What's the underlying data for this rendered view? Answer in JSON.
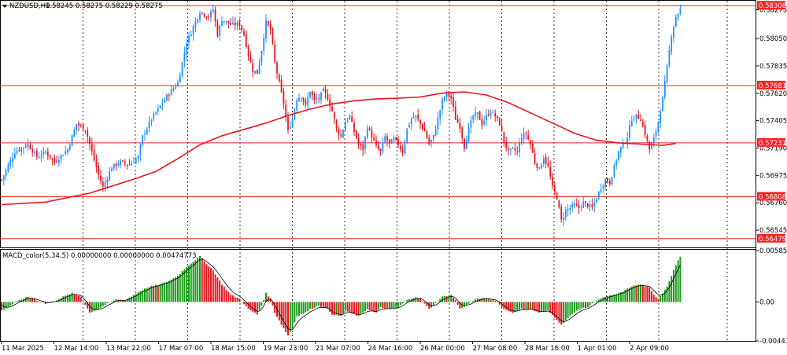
{
  "header": {
    "symbol_label": "NZDUSD,H1",
    "ohlc_values": "0.58245 0.58275 0.58229 0.58275"
  },
  "macd_header": "MACD_color(5,34,5) 0.00000000 0.00000000 0.00474773",
  "colors": {
    "bull_candle": "#1e90ff",
    "bear_candle": "#e8141e",
    "ma_line": "#e8141e",
    "level_line": "#ff2020",
    "grid": "#000000",
    "macd_up": "#1a9c1a",
    "macd_down": "#e8141e",
    "macd_brown": "#8b4513",
    "signal_line": "#000000"
  },
  "chart_data": [
    {
      "type": "candlestick",
      "title": "NZDUSD,H1",
      "price_axis_labels": [
        "0.58275",
        "0.58050",
        "0.57835",
        "0.57620",
        "0.57405",
        "0.57190",
        "0.56975",
        "0.56760",
        "0.56545"
      ],
      "ylim": [
        0.5641,
        0.5834
      ],
      "horizontal_levels": [
        "0.58308",
        "0.57681",
        "0.57231",
        "0.56808",
        "0.56479"
      ],
      "time_labels": [
        "11 Mar 2025",
        "12 Mar 14:00",
        "13 Mar 22:00",
        "17 Mar 07:00",
        "18 Mar 15:00",
        "19 Mar 23:00",
        "21 Mar 07:00",
        "24 Mar 16:00",
        "26 Mar 00:00",
        "27 Mar 08:00",
        "28 Mar 16:00",
        "1 Apr 01:00",
        "2 Apr 09:00"
      ],
      "close_path": [
        [
          0,
          0.5694
        ],
        [
          6,
          0.5716
        ],
        [
          12,
          0.5722
        ],
        [
          16,
          0.5712
        ],
        [
          20,
          0.5716
        ],
        [
          24,
          0.5708
        ],
        [
          30,
          0.5718
        ],
        [
          34,
          0.5738
        ],
        [
          38,
          0.5734
        ],
        [
          40,
          0.5722
        ],
        [
          44,
          0.5698
        ],
        [
          46,
          0.5688
        ],
        [
          50,
          0.5704
        ],
        [
          54,
          0.5708
        ],
        [
          58,
          0.5706
        ],
        [
          62,
          0.5712
        ],
        [
          64,
          0.5728
        ],
        [
          68,
          0.5742
        ],
        [
          72,
          0.5752
        ],
        [
          76,
          0.5762
        ],
        [
          80,
          0.577
        ],
        [
          84,
          0.5802
        ],
        [
          88,
          0.5818
        ],
        [
          90,
          0.5826
        ],
        [
          94,
          0.5822
        ],
        [
          96,
          0.5828
        ],
        [
          98,
          0.5808
        ],
        [
          100,
          0.582
        ],
        [
          104,
          0.5816
        ],
        [
          108,
          0.5816
        ],
        [
          110,
          0.5808
        ],
        [
          112,
          0.5792
        ],
        [
          114,
          0.578
        ],
        [
          116,
          0.5778
        ],
        [
          118,
          0.5796
        ],
        [
          120,
          0.5818
        ],
        [
          122,
          0.5812
        ],
        [
          124,
          0.5786
        ],
        [
          126,
          0.577
        ],
        [
          128,
          0.5754
        ],
        [
          130,
          0.5732
        ],
        [
          132,
          0.5742
        ],
        [
          134,
          0.5758
        ],
        [
          136,
          0.576
        ],
        [
          138,
          0.5752
        ],
        [
          140,
          0.5764
        ],
        [
          142,
          0.5756
        ],
        [
          144,
          0.5758
        ],
        [
          146,
          0.5764
        ],
        [
          148,
          0.5758
        ],
        [
          150,
          0.5748
        ],
        [
          152,
          0.5734
        ],
        [
          154,
          0.5728
        ],
        [
          156,
          0.574
        ],
        [
          158,
          0.5744
        ],
        [
          160,
          0.5732
        ],
        [
          162,
          0.5722
        ],
        [
          164,
          0.5718
        ],
        [
          166,
          0.5736
        ],
        [
          168,
          0.5728
        ],
        [
          170,
          0.572
        ],
        [
          172,
          0.5716
        ],
        [
          174,
          0.5728
        ],
        [
          176,
          0.5722
        ],
        [
          178,
          0.5726
        ],
        [
          180,
          0.5722
        ],
        [
          182,
          0.5716
        ],
        [
          184,
          0.5734
        ],
        [
          186,
          0.5742
        ],
        [
          188,
          0.5744
        ],
        [
          190,
          0.5738
        ],
        [
          192,
          0.5732
        ],
        [
          194,
          0.5722
        ],
        [
          196,
          0.5728
        ],
        [
          198,
          0.5742
        ],
        [
          200,
          0.5756
        ],
        [
          202,
          0.5762
        ],
        [
          204,
          0.5758
        ],
        [
          206,
          0.5742
        ],
        [
          208,
          0.5736
        ],
        [
          210,
          0.572
        ],
        [
          212,
          0.5734
        ],
        [
          214,
          0.5744
        ],
        [
          216,
          0.5746
        ],
        [
          218,
          0.5738
        ],
        [
          220,
          0.5744
        ],
        [
          222,
          0.5748
        ],
        [
          224,
          0.5744
        ],
        [
          226,
          0.5738
        ],
        [
          228,
          0.5724
        ],
        [
          230,
          0.5716
        ],
        [
          232,
          0.5718
        ],
        [
          234,
          0.5716
        ],
        [
          236,
          0.5728
        ],
        [
          238,
          0.573
        ],
        [
          240,
          0.5722
        ],
        [
          242,
          0.5708
        ],
        [
          244,
          0.5702
        ],
        [
          246,
          0.5712
        ],
        [
          248,
          0.5704
        ],
        [
          250,
          0.5688
        ],
        [
          252,
          0.568
        ],
        [
          254,
          0.5662
        ],
        [
          256,
          0.567
        ],
        [
          258,
          0.5672
        ],
        [
          260,
          0.5674
        ],
        [
          262,
          0.5672
        ],
        [
          264,
          0.5676
        ],
        [
          266,
          0.5674
        ],
        [
          268,
          0.5672
        ],
        [
          270,
          0.568
        ],
        [
          272,
          0.5688
        ],
        [
          274,
          0.5694
        ],
        [
          276,
          0.5692
        ],
        [
          278,
          0.5704
        ],
        [
          280,
          0.5716
        ],
        [
          282,
          0.5722
        ],
        [
          284,
          0.5728
        ],
        [
          286,
          0.5742
        ],
        [
          288,
          0.5744
        ],
        [
          290,
          0.5742
        ],
        [
          292,
          0.573
        ],
        [
          294,
          0.5718
        ],
        [
          296,
          0.5726
        ],
        [
          298,
          0.574
        ],
        [
          300,
          0.5758
        ],
        [
          302,
          0.5782
        ],
        [
          304,
          0.5808
        ],
        [
          306,
          0.5822
        ],
        [
          308,
          0.5828
        ]
      ],
      "moving_average": [
        [
          0,
          0.56746
        ],
        [
          20,
          0.56766
        ],
        [
          40,
          0.56836
        ],
        [
          60,
          0.56946
        ],
        [
          70,
          0.57006
        ],
        [
          80,
          0.57106
        ],
        [
          90,
          0.57216
        ],
        [
          100,
          0.57286
        ],
        [
          110,
          0.57336
        ],
        [
          120,
          0.57386
        ],
        [
          130,
          0.57446
        ],
        [
          140,
          0.57496
        ],
        [
          150,
          0.57536
        ],
        [
          160,
          0.57561
        ],
        [
          170,
          0.57576
        ],
        [
          180,
          0.57581
        ],
        [
          190,
          0.57591
        ],
        [
          200,
          0.57621
        ],
        [
          210,
          0.57631
        ],
        [
          220,
          0.57606
        ],
        [
          230,
          0.57546
        ],
        [
          240,
          0.57466
        ],
        [
          250,
          0.57386
        ],
        [
          260,
          0.57306
        ],
        [
          270,
          0.57251
        ],
        [
          280,
          0.57231
        ],
        [
          290,
          0.57221
        ],
        [
          300,
          0.57211
        ],
        [
          306,
          0.57226
        ]
      ]
    },
    {
      "type": "bar",
      "title": "MACD_color(5,34,5)",
      "axis_labels": [
        "0.0058527",
        "0.00",
        "-0.0044174"
      ],
      "ylim": [
        -0.0044174,
        0.0058527
      ],
      "histogram": [
        [
          0,
          -0.001
        ],
        [
          4,
          -0.0004
        ],
        [
          8,
          0.0002
        ],
        [
          12,
          0.0006
        ],
        [
          16,
          0.0002
        ],
        [
          20,
          -0.0002
        ],
        [
          24,
          0.0001
        ],
        [
          28,
          0.0006
        ],
        [
          32,
          0.001
        ],
        [
          36,
          0.0006
        ],
        [
          40,
          -0.0012
        ],
        [
          44,
          -0.0008
        ],
        [
          48,
          -0.0002
        ],
        [
          52,
          0.0003
        ],
        [
          56,
          0.0002
        ],
        [
          60,
          0.0008
        ],
        [
          64,
          0.0014
        ],
        [
          68,
          0.0018
        ],
        [
          72,
          0.002
        ],
        [
          76,
          0.0024
        ],
        [
          80,
          0.003
        ],
        [
          84,
          0.004
        ],
        [
          88,
          0.0048
        ],
        [
          90,
          0.0052
        ],
        [
          92,
          0.0046
        ],
        [
          96,
          0.0036
        ],
        [
          100,
          0.002
        ],
        [
          104,
          0.0008
        ],
        [
          108,
          0.0004
        ],
        [
          112,
          -0.0008
        ],
        [
          116,
          -0.0014
        ],
        [
          118,
          -0.0004
        ],
        [
          120,
          0.001
        ],
        [
          122,
          0.0004
        ],
        [
          124,
          -0.0012
        ],
        [
          128,
          -0.003
        ],
        [
          130,
          -0.0038
        ],
        [
          132,
          -0.003
        ],
        [
          134,
          -0.0016
        ],
        [
          138,
          -0.0012
        ],
        [
          140,
          -0.0008
        ],
        [
          144,
          -0.0004
        ],
        [
          148,
          -0.0008
        ],
        [
          150,
          -0.0014
        ],
        [
          154,
          -0.0016
        ],
        [
          156,
          -0.001
        ],
        [
          160,
          -0.0014
        ],
        [
          162,
          -0.0016
        ],
        [
          166,
          -0.0008
        ],
        [
          170,
          -0.0012
        ],
        [
          172,
          -0.0006
        ],
        [
          176,
          -0.0008
        ],
        [
          180,
          -0.0006
        ],
        [
          184,
          0.0002
        ],
        [
          188,
          0.0006
        ],
        [
          190,
          0.0004
        ],
        [
          194,
          -0.0008
        ],
        [
          196,
          -0.0004
        ],
        [
          200,
          0.0006
        ],
        [
          204,
          0.0008
        ],
        [
          206,
          0.0002
        ],
        [
          208,
          -0.0008
        ],
        [
          212,
          -0.0002
        ],
        [
          216,
          0.0004
        ],
        [
          220,
          0.0004
        ],
        [
          224,
          0.0002
        ],
        [
          228,
          -0.0008
        ],
        [
          232,
          -0.0012
        ],
        [
          236,
          -0.0008
        ],
        [
          240,
          -0.0008
        ],
        [
          244,
          -0.0012
        ],
        [
          248,
          -0.001
        ],
        [
          252,
          -0.002
        ],
        [
          254,
          -0.0026
        ],
        [
          258,
          -0.0016
        ],
        [
          262,
          -0.0008
        ],
        [
          266,
          -0.0006
        ],
        [
          270,
          0.0002
        ],
        [
          274,
          0.0006
        ],
        [
          278,
          0.0008
        ],
        [
          282,
          0.0012
        ],
        [
          286,
          0.0018
        ],
        [
          290,
          0.002
        ],
        [
          294,
          0.0016
        ],
        [
          296,
          0.0008
        ],
        [
          298,
          0.0004
        ],
        [
          300,
          0.001
        ],
        [
          302,
          0.0018
        ],
        [
          304,
          0.003
        ],
        [
          306,
          0.0042
        ],
        [
          308,
          0.0052
        ]
      ]
    }
  ]
}
